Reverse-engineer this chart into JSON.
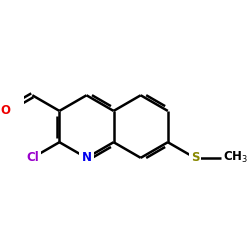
{
  "background_color": "#ffffff",
  "bond_color": "#000000",
  "bond_width": 1.8,
  "atoms": {
    "N": {
      "color": "#0000ee",
      "fontsize": 8.5
    },
    "O": {
      "color": "#ee0000",
      "fontsize": 8.5
    },
    "Cl": {
      "color": "#9900cc",
      "fontsize": 8.5
    },
    "S": {
      "color": "#888800",
      "fontsize": 8.5
    }
  },
  "figsize": [
    2.5,
    2.5
  ],
  "dpi": 100
}
